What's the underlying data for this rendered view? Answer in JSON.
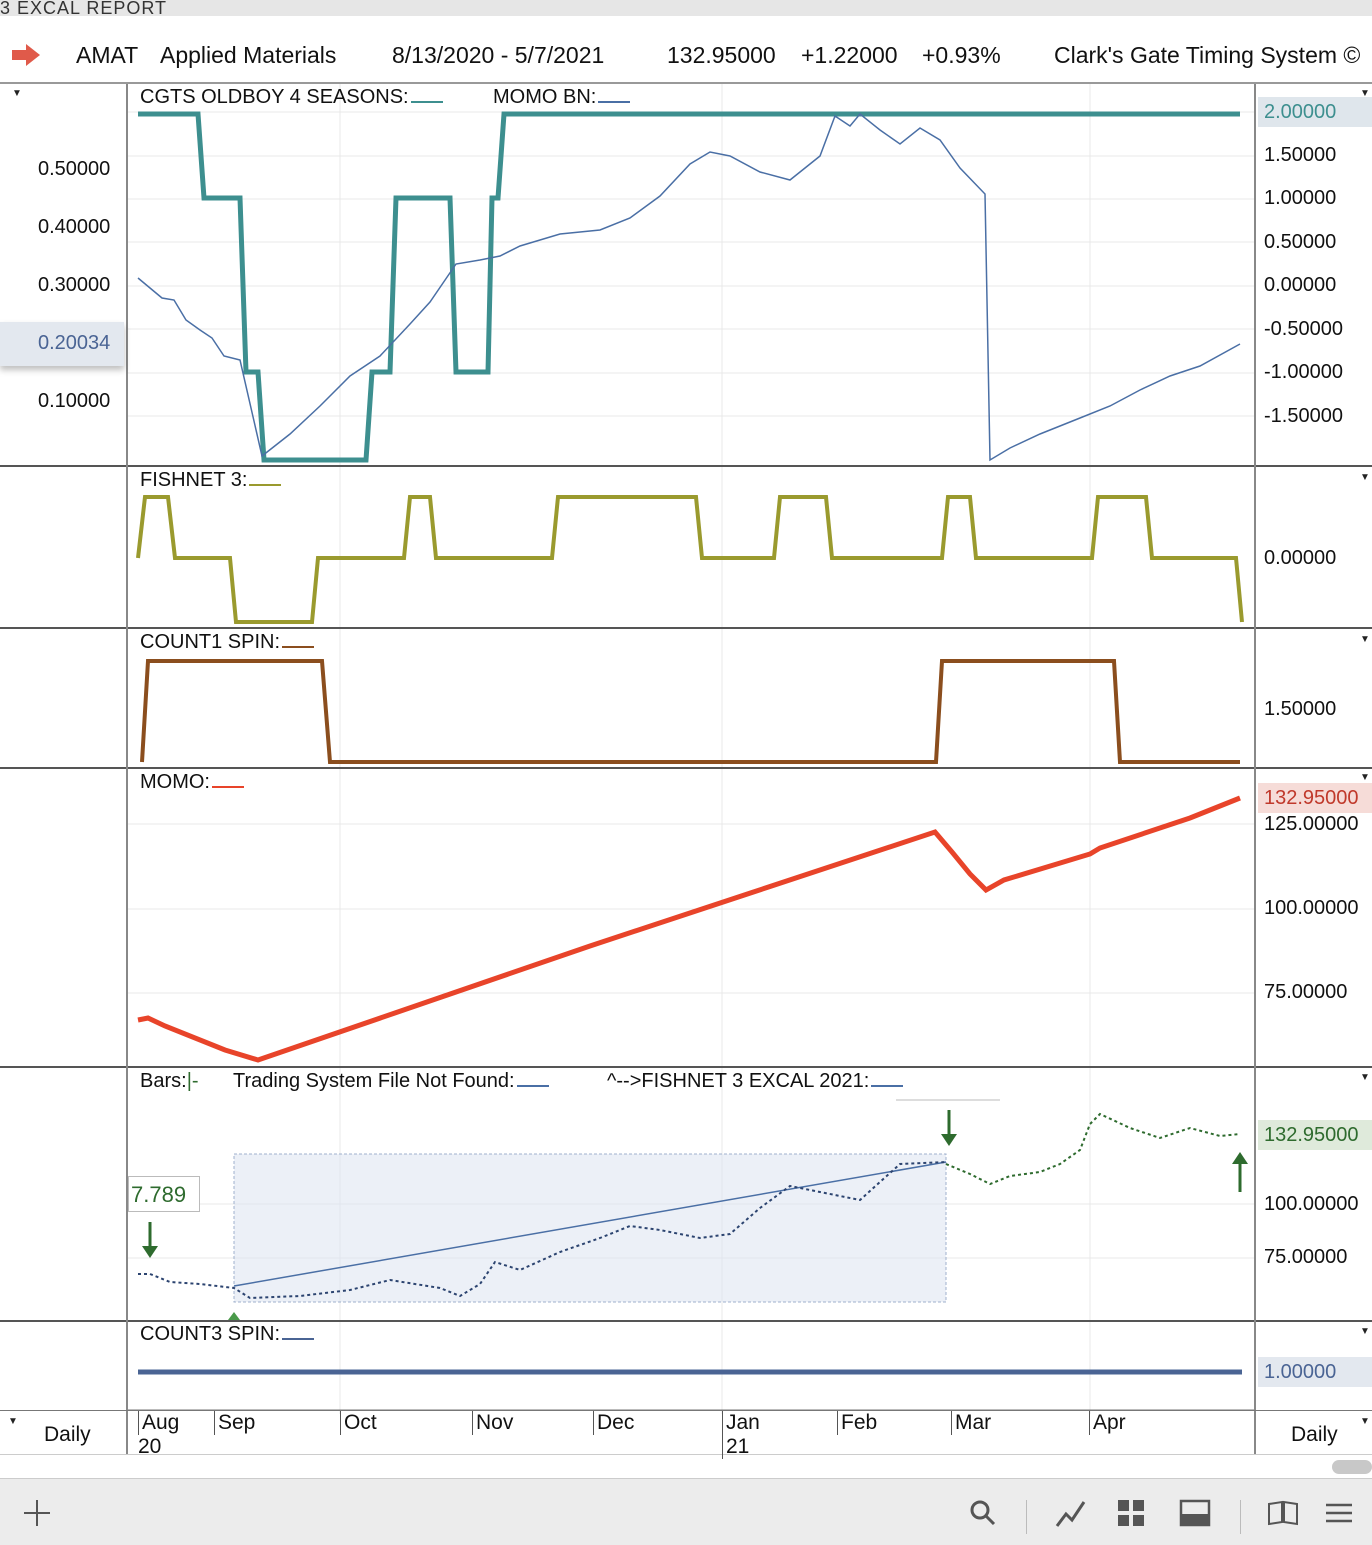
{
  "window": {
    "title": "3 EXCAL REPORT"
  },
  "header": {
    "symbol": "AMAT",
    "company": "Applied Materials",
    "date_range": "8/13/2020 - 5/7/2021",
    "last_price": "132.95000",
    "change": "+1.22000",
    "change_pct": "+0.93%",
    "system_name": "Clark's Gate Timing System ©"
  },
  "panels": {
    "p1": {
      "label": "CGTS OLDBOY 4 SEASONS:",
      "label2": "MOMO BN:",
      "left_ticks": [
        "0.50000",
        "0.40000",
        "0.30000",
        "0.10000"
      ],
      "left_current": "0.20034",
      "right_ticks": [
        "2.00000",
        "1.50000",
        "1.00000",
        "0.50000",
        "0.00000",
        "-0.50000",
        "-1.00000",
        "-1.50000"
      ]
    },
    "p2": {
      "label": "FISHNET 3:",
      "right_ticks": [
        "0.00000"
      ]
    },
    "p3": {
      "label": "COUNT1 SPIN:",
      "right_ticks": [
        "1.50000"
      ]
    },
    "p4": {
      "label": "MOMO:",
      "current": "132.95000",
      "right_ticks": [
        "125.00000",
        "100.00000",
        "75.00000"
      ]
    },
    "p5": {
      "label_bars": "Bars:",
      "label_sys": "Trading System File Not Found:",
      "label_fish": "^-->FISHNET 3 EXCAL 2021:",
      "left_value": "7.789",
      "current": "132.95000",
      "right_ticks": [
        "100.00000",
        "75.00000"
      ]
    },
    "p6": {
      "label": "COUNT3 SPIN:",
      "right_ticks": [
        "1.00000"
      ]
    }
  },
  "x_axis": {
    "months": [
      "Aug",
      "Sep",
      "Oct",
      "Nov",
      "Dec",
      "Jan",
      "Feb",
      "Mar",
      "Apr"
    ],
    "years": [
      "20",
      "21"
    ],
    "left_period": "Daily",
    "right_period": "Daily"
  },
  "colors": {
    "teal": "#3d8f8f",
    "blue": "#4a6fa5",
    "olive": "#9a9a2e",
    "brown": "#8b4e1e",
    "red": "#e8442a",
    "green": "#2e6b2e",
    "navy": "#4a6494"
  },
  "toolbar_icons": [
    "plus-icon",
    "search-icon",
    "line-chart-icon",
    "grid-icon",
    "panel-icon",
    "book-icon",
    "menu-icon"
  ]
}
